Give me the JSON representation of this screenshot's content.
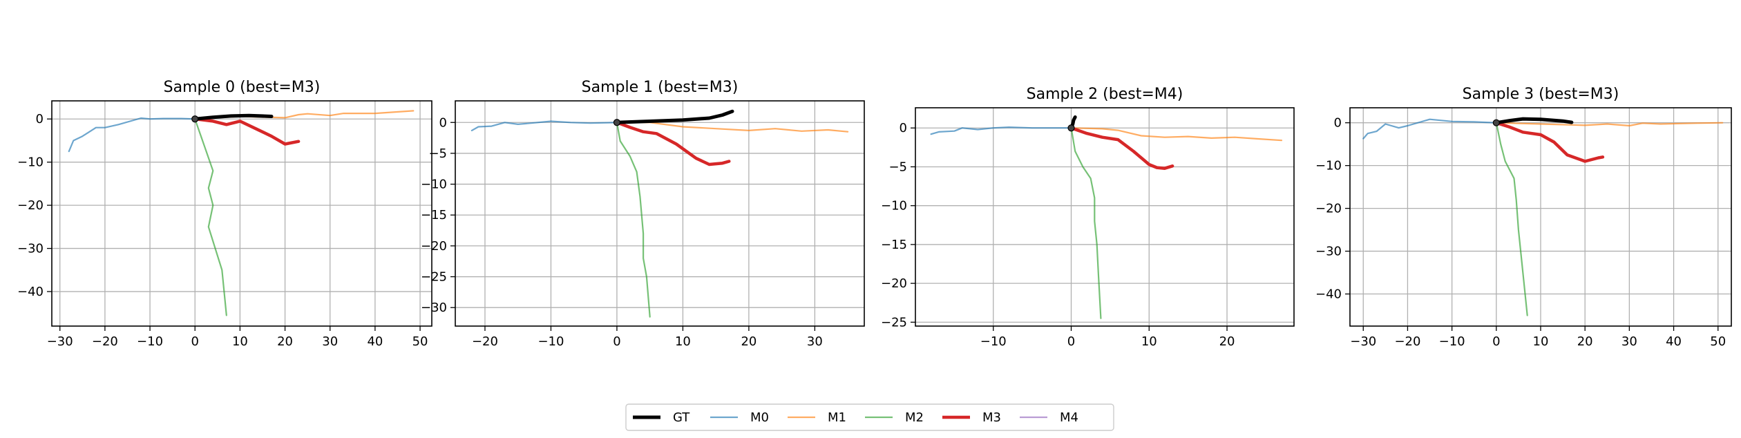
{
  "colors": {
    "GT": "#000000",
    "M0": "#1f77b4",
    "M1": "#ff7f0e",
    "M2": "#2ca02c",
    "M3": "#d62728",
    "M4": "#9467bd",
    "grid": "#b0b0b0",
    "axis": "#000000"
  },
  "legend": {
    "placement": "bottom-center",
    "entries": [
      "GT",
      "M0",
      "M1",
      "M2",
      "M3",
      "M4"
    ]
  },
  "chart_data": [
    {
      "type": "line",
      "title": "Sample 0 (best=M3)",
      "xlim": [
        -31.8,
        52.6
      ],
      "ylim": [
        -48,
        4.2
      ],
      "xticks": [
        -30,
        -20,
        -10,
        0,
        10,
        20,
        30,
        40,
        50
      ],
      "yticks": [
        0,
        -10,
        -20,
        -30,
        -40
      ],
      "series": [
        {
          "name": "M0",
          "x": [
            -28,
            -27,
            -25,
            -22,
            -20,
            -17,
            -12,
            -10,
            -7,
            -3,
            0
          ],
          "y": [
            -7.5,
            -5,
            -4,
            -2,
            -2,
            -1.3,
            0.2,
            0,
            0.1,
            0.1,
            0
          ]
        },
        {
          "name": "M1",
          "x": [
            0,
            10,
            20,
            23,
            25,
            30,
            33,
            40,
            48.5
          ],
          "y": [
            0,
            0.6,
            0.3,
            1,
            1.2,
            0.8,
            1.3,
            1.3,
            1.9
          ]
        },
        {
          "name": "M2",
          "x": [
            0,
            2,
            4,
            3,
            4,
            3,
            6,
            7
          ],
          "y": [
            0,
            -6,
            -12,
            -16,
            -20,
            -25,
            -35,
            -45.5
          ]
        },
        {
          "name": "M3",
          "x": [
            0,
            4,
            7,
            10,
            14,
            17,
            20,
            23
          ],
          "y": [
            0,
            -0.5,
            -1.3,
            -0.5,
            -2.5,
            -4,
            -5.8,
            -5.2
          ]
        },
        {
          "name": "GT",
          "x": [
            0,
            4,
            8,
            12,
            17
          ],
          "y": [
            0,
            0.4,
            0.7,
            0.8,
            0.6
          ]
        }
      ]
    },
    {
      "type": "line",
      "title": "Sample 1 (best=M3)",
      "xlim": [
        -24.5,
        37.5
      ],
      "ylim": [
        -33,
        3.5
      ],
      "xticks": [
        -20,
        -10,
        0,
        10,
        20,
        30
      ],
      "yticks": [
        0,
        -5,
        -10,
        -15,
        -20,
        -25,
        -30
      ],
      "series": [
        {
          "name": "M0",
          "x": [
            -22,
            -21,
            -19,
            -17,
            -15,
            -13,
            -10,
            -7,
            -4,
            0
          ],
          "y": [
            -1.3,
            -0.7,
            -0.6,
            0,
            -0.3,
            -0.1,
            0.2,
            0,
            -0.1,
            0
          ]
        },
        {
          "name": "M1",
          "x": [
            0,
            5,
            10,
            15,
            20,
            24,
            28,
            32,
            35
          ],
          "y": [
            0,
            0,
            -0.7,
            -1,
            -1.3,
            -1,
            -1.4,
            -1.2,
            -1.5
          ]
        },
        {
          "name": "M2",
          "x": [
            0,
            0.5,
            2,
            3,
            3.5,
            4,
            4,
            4.5,
            5
          ],
          "y": [
            0,
            -3,
            -5.5,
            -8,
            -12,
            -18,
            -22,
            -25,
            -31.5
          ]
        },
        {
          "name": "M3",
          "x": [
            0,
            2,
            4,
            6,
            9,
            12,
            14,
            16,
            17
          ],
          "y": [
            0,
            -0.8,
            -1.5,
            -1.8,
            -3.5,
            -5.8,
            -6.8,
            -6.6,
            -6.3
          ]
        },
        {
          "name": "GT",
          "x": [
            0,
            5,
            10,
            14,
            16,
            17.5
          ],
          "y": [
            0,
            0.2,
            0.4,
            0.7,
            1.2,
            1.8
          ]
        }
      ]
    },
    {
      "type": "line",
      "title": "Sample 2 (best=M4)",
      "xlim": [
        -20,
        28.6
      ],
      "ylim": [
        -25.5,
        2.6
      ],
      "xticks": [
        -10,
        0,
        10,
        20
      ],
      "yticks": [
        0,
        -5,
        -10,
        -15,
        -20,
        -25
      ],
      "series": [
        {
          "name": "M0",
          "x": [
            -18,
            -17,
            -15,
            -14,
            -12,
            -10,
            -8,
            -5,
            -2,
            0
          ],
          "y": [
            -0.8,
            -0.5,
            -0.4,
            0,
            -0.2,
            0,
            0.1,
            0,
            0,
            0
          ]
        },
        {
          "name": "M1",
          "x": [
            0,
            4,
            6,
            9,
            12,
            15,
            18,
            21,
            24,
            27
          ],
          "y": [
            0,
            -0.1,
            -0.3,
            -1,
            -1.2,
            -1.1,
            -1.3,
            -1.2,
            -1.4,
            -1.6
          ]
        },
        {
          "name": "M2",
          "x": [
            0,
            0.5,
            1.5,
            2.5,
            3,
            3,
            3.3,
            3.5,
            3.8
          ],
          "y": [
            0,
            -3,
            -5,
            -6.5,
            -9,
            -12,
            -15,
            -19,
            -24.5
          ]
        },
        {
          "name": "M3",
          "x": [
            0,
            2,
            4,
            6,
            8,
            10,
            11,
            12,
            13
          ],
          "y": [
            0,
            -0.7,
            -1.2,
            -1.5,
            -3,
            -4.7,
            -5.1,
            -5.2,
            -4.9
          ]
        },
        {
          "name": "GT",
          "x": [
            0,
            0.2,
            0.3,
            0.5
          ],
          "y": [
            0,
            0.5,
            1,
            1.4
          ]
        }
      ]
    },
    {
      "type": "line",
      "title": "Sample 3 (best=M3)",
      "xlim": [
        -33,
        53
      ],
      "ylim": [
        -47.5,
        3.5
      ],
      "xticks": [
        -30,
        -20,
        -10,
        0,
        10,
        20,
        30,
        40,
        50
      ],
      "yticks": [
        0,
        -10,
        -20,
        -30,
        -40
      ],
      "series": [
        {
          "name": "M0",
          "x": [
            -30,
            -29,
            -27,
            -25,
            -22,
            -20,
            -15,
            -10,
            -5,
            0
          ],
          "y": [
            -3.7,
            -2.5,
            -2,
            -0.3,
            -1.2,
            -0.7,
            0.8,
            0.3,
            0.2,
            0
          ]
        },
        {
          "name": "M1",
          "x": [
            0,
            10,
            20,
            25,
            30,
            33,
            37,
            45,
            51
          ],
          "y": [
            0,
            -0.3,
            -0.6,
            -0.3,
            -0.7,
            -0.1,
            -0.3,
            -0.1,
            0
          ]
        },
        {
          "name": "M2",
          "x": [
            0,
            1,
            2,
            4,
            4.5,
            5,
            5.5,
            6,
            7
          ],
          "y": [
            0,
            -5,
            -9,
            -13,
            -18,
            -25,
            -30,
            -35,
            -45
          ]
        },
        {
          "name": "M3",
          "x": [
            0,
            3,
            6,
            10,
            13,
            16,
            20,
            23,
            24
          ],
          "y": [
            0,
            -1,
            -2.2,
            -2.8,
            -4.5,
            -7.5,
            -9,
            -8.2,
            -8
          ]
        },
        {
          "name": "GT",
          "x": [
            0,
            3,
            6,
            10,
            15,
            17
          ],
          "y": [
            0,
            0.5,
            0.9,
            0.8,
            0.4,
            0.1
          ]
        }
      ]
    }
  ]
}
